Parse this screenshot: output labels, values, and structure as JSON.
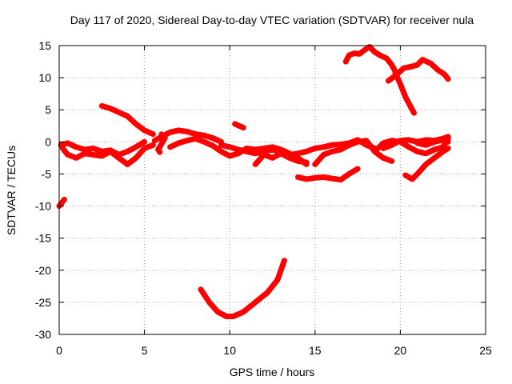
{
  "chart_data": {
    "type": "scatter",
    "title": "Day 117 of 2020, Sidereal Day-to-day VTEC variation (SDTVAR) for receiver nula",
    "xlabel": "GPS time / hours",
    "ylabel": "SDTVAR / TECUs",
    "xlim": [
      0,
      25
    ],
    "ylim": [
      -30,
      15
    ],
    "xticks": [
      0,
      5,
      10,
      15,
      20,
      25
    ],
    "yticks": [
      -30,
      -25,
      -20,
      -15,
      -10,
      -5,
      0,
      5,
      10,
      15
    ],
    "grid": true,
    "color": "#ff0000",
    "series": [
      {
        "name": "t0",
        "points": [
          [
            0.0,
            -10.0
          ],
          [
            0.3,
            -9.0
          ]
        ]
      },
      {
        "name": "t1",
        "points": [
          [
            0.1,
            -0.5
          ],
          [
            0.5,
            -0.2
          ],
          [
            1.0,
            -0.8
          ],
          [
            1.5,
            -1.2
          ],
          [
            2.0,
            -1.0
          ],
          [
            2.5,
            -1.5
          ],
          [
            3.0,
            -1.3
          ],
          [
            3.5,
            -2.0
          ],
          [
            4.0,
            -1.5
          ],
          [
            4.5,
            -0.8
          ],
          [
            5.0,
            0.0
          ]
        ]
      },
      {
        "name": "t2",
        "points": [
          [
            0.2,
            -1.0
          ],
          [
            0.5,
            -2.0
          ],
          [
            1.0,
            -2.5
          ],
          [
            1.5,
            -1.8
          ],
          [
            2.0,
            -2.0
          ],
          [
            2.5,
            -2.2
          ],
          [
            3.0,
            -1.5
          ],
          [
            3.5,
            -2.5
          ],
          [
            4.0,
            -3.5
          ],
          [
            4.5,
            -2.5
          ],
          [
            5.0,
            -1.0
          ],
          [
            5.5,
            -0.5
          ]
        ]
      },
      {
        "name": "t3",
        "points": [
          [
            2.5,
            5.6
          ],
          [
            3.0,
            5.2
          ],
          [
            3.5,
            4.6
          ],
          [
            4.0,
            4.0
          ],
          [
            4.5,
            2.8
          ],
          [
            5.0,
            1.8
          ],
          [
            5.5,
            1.2
          ]
        ]
      },
      {
        "name": "t4",
        "points": [
          [
            5.6,
            0.2
          ],
          [
            6.0,
            0.8
          ],
          [
            6.5,
            1.5
          ],
          [
            7.0,
            1.8
          ],
          [
            7.5,
            1.6
          ],
          [
            8.0,
            1.2
          ],
          [
            8.5,
            1.0
          ],
          [
            9.0,
            0.6
          ],
          [
            9.5,
            0.0
          ]
        ]
      },
      {
        "name": "t5",
        "points": [
          [
            6.5,
            -0.8
          ],
          [
            7.0,
            -0.2
          ],
          [
            7.5,
            0.2
          ],
          [
            8.0,
            0.5
          ],
          [
            8.5,
            0.0
          ],
          [
            9.0,
            -0.6
          ],
          [
            9.5,
            -1.5
          ],
          [
            10.0,
            -2.2
          ],
          [
            10.5,
            -1.8
          ],
          [
            11.0,
            -1.0
          ],
          [
            11.5,
            -1.2
          ],
          [
            12.0,
            -1.0
          ],
          [
            12.5,
            -0.8
          ],
          [
            13.0,
            -1.2
          ],
          [
            13.5,
            -1.8
          ],
          [
            14.0,
            -2.5
          ],
          [
            14.5,
            -3.5
          ]
        ]
      },
      {
        "name": "t6",
        "points": [
          [
            9.5,
            -0.5
          ],
          [
            10.0,
            -0.8
          ],
          [
            10.5,
            -1.2
          ],
          [
            11.0,
            -1.5
          ],
          [
            11.5,
            -1.8
          ],
          [
            12.0,
            -1.5
          ],
          [
            12.5,
            -1.2
          ],
          [
            13.0,
            -1.5
          ],
          [
            13.5,
            -2.0
          ],
          [
            14.0,
            -1.8
          ],
          [
            14.5,
            -1.5
          ],
          [
            15.0,
            -1.0
          ],
          [
            15.5,
            -0.8
          ],
          [
            16.0,
            -0.5
          ],
          [
            16.5,
            -0.4
          ],
          [
            17.0,
            -0.2
          ],
          [
            17.5,
            0.3
          ],
          [
            18.0,
            -0.5
          ],
          [
            18.5,
            -1.0
          ]
        ]
      },
      {
        "name": "t7",
        "points": [
          [
            10.3,
            2.8
          ],
          [
            10.8,
            2.2
          ]
        ]
      },
      {
        "name": "t8",
        "points": [
          [
            11.5,
            -3.5
          ],
          [
            12.0,
            -2.0
          ],
          [
            12.5,
            -2.5
          ],
          [
            13.0,
            -1.8
          ],
          [
            13.5,
            -2.5
          ],
          [
            14.0,
            -3.0
          ],
          [
            14.5,
            -3.2
          ]
        ]
      },
      {
        "name": "t9",
        "points": [
          [
            15.0,
            -3.5
          ],
          [
            15.5,
            -2.0
          ],
          [
            16.0,
            -1.5
          ],
          [
            16.5,
            -1.2
          ],
          [
            17.0,
            -0.5
          ],
          [
            17.5,
            0.0
          ],
          [
            18.0,
            0.2
          ],
          [
            18.5,
            -1.5
          ],
          [
            19.0,
            -2.5
          ],
          [
            19.5,
            -3.0
          ]
        ]
      },
      {
        "name": "t10",
        "points": [
          [
            14.0,
            -5.5
          ],
          [
            14.5,
            -5.8
          ],
          [
            15.0,
            -5.6
          ],
          [
            15.5,
            -5.5
          ],
          [
            16.0,
            -5.7
          ],
          [
            16.5,
            -5.9
          ],
          [
            17.0,
            -5.0
          ],
          [
            17.5,
            -4.2
          ]
        ]
      },
      {
        "name": "t11",
        "points": [
          [
            18.5,
            -1.5
          ],
          [
            19.0,
            -0.2
          ],
          [
            19.5,
            0.2
          ],
          [
            20.0,
            0.0
          ],
          [
            20.5,
            -0.8
          ],
          [
            21.0,
            -1.5
          ],
          [
            21.5,
            -1.8
          ],
          [
            22.0,
            -1.2
          ],
          [
            22.5,
            -0.8
          ],
          [
            22.8,
            0.5
          ]
        ]
      },
      {
        "name": "t12",
        "points": [
          [
            19.0,
            -1.0
          ],
          [
            19.5,
            -0.5
          ],
          [
            20.0,
            0.2
          ],
          [
            20.5,
            0.3
          ],
          [
            21.0,
            0.0
          ],
          [
            21.5,
            0.3
          ],
          [
            22.0,
            0.2
          ],
          [
            22.5,
            0.5
          ],
          [
            22.8,
            0.8
          ]
        ]
      },
      {
        "name": "t13",
        "points": [
          [
            20.3,
            -5.2
          ],
          [
            20.7,
            -5.8
          ],
          [
            21.0,
            -5.0
          ],
          [
            21.5,
            -3.5
          ],
          [
            22.0,
            -2.5
          ],
          [
            22.5,
            -1.5
          ],
          [
            22.8,
            -1.0
          ]
        ]
      },
      {
        "name": "t14",
        "points": [
          [
            16.8,
            12.5
          ],
          [
            17.0,
            13.5
          ],
          [
            17.3,
            13.8
          ],
          [
            17.6,
            13.7
          ],
          [
            18.0,
            14.5
          ],
          [
            18.2,
            14.8
          ],
          [
            18.5,
            14.0
          ],
          [
            18.8,
            13.5
          ],
          [
            19.2,
            13.0
          ],
          [
            19.5,
            12.0
          ],
          [
            19.7,
            11.0
          ]
        ]
      },
      {
        "name": "t15",
        "points": [
          [
            19.3,
            9.5
          ],
          [
            19.8,
            10.5
          ],
          [
            20.2,
            11.5
          ],
          [
            20.6,
            11.7
          ],
          [
            21.0,
            12.0
          ],
          [
            21.3,
            12.8
          ],
          [
            21.8,
            12.2
          ],
          [
            22.2,
            11.2
          ],
          [
            22.6,
            10.5
          ],
          [
            22.8,
            9.8
          ]
        ]
      },
      {
        "name": "t16",
        "points": [
          [
            19.7,
            10.8
          ],
          [
            20.0,
            9.0
          ],
          [
            20.3,
            7.0
          ],
          [
            20.6,
            5.5
          ],
          [
            20.8,
            4.5
          ]
        ]
      },
      {
        "name": "t17",
        "points": [
          [
            8.3,
            -23.0
          ],
          [
            8.8,
            -25.0
          ],
          [
            9.3,
            -26.5
          ],
          [
            9.8,
            -27.2
          ],
          [
            10.2,
            -27.2
          ],
          [
            10.8,
            -26.5
          ],
          [
            11.5,
            -25.0
          ],
          [
            12.2,
            -23.5
          ],
          [
            12.8,
            -21.5
          ],
          [
            13.2,
            -18.5
          ]
        ]
      },
      {
        "name": "t18",
        "points": [
          [
            6.0,
            1.2
          ],
          [
            6.2,
            0.6
          ],
          [
            5.8,
            -1.2
          ],
          [
            5.9,
            -1.6
          ]
        ]
      },
      {
        "name": "t19",
        "points": [
          [
            21.0,
            -0.2
          ],
          [
            21.5,
            -0.5
          ],
          [
            22.0,
            0.0
          ],
          [
            22.5,
            0.3
          ],
          [
            22.8,
            0.0
          ]
        ]
      }
    ]
  }
}
